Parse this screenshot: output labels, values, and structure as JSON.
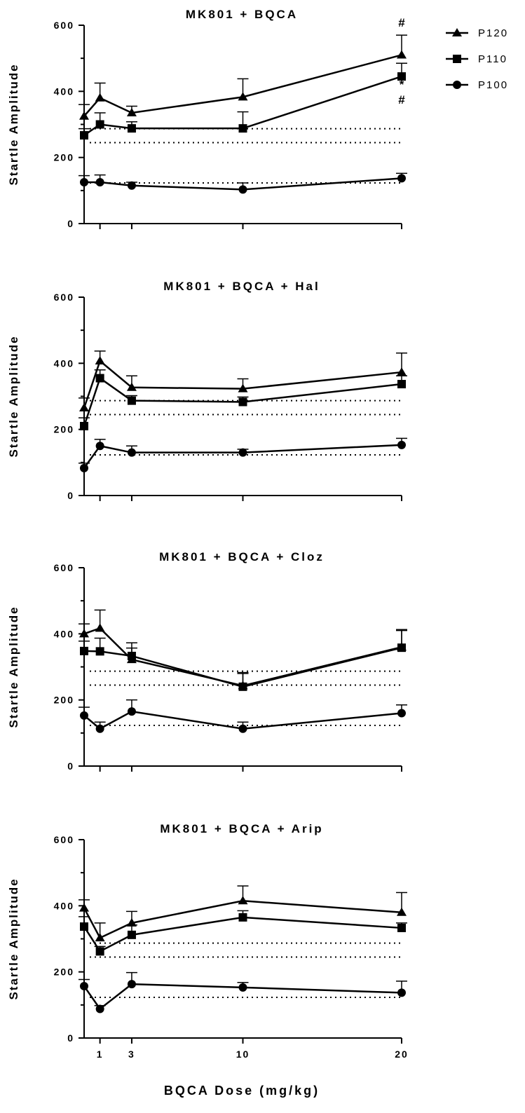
{
  "chart_data": {
    "type": "line",
    "xlabel": "BQCA Dose (mg/kg)",
    "ylabel": "Startle Amplitude",
    "x_ticks": [
      1,
      3,
      10,
      20
    ],
    "x_tick_labels": [
      "1",
      "3",
      "10",
      "20"
    ],
    "xlim": [
      0,
      20
    ],
    "ylim": [
      0,
      600
    ],
    "y_ticks": [
      0,
      200,
      400,
      600
    ],
    "y_tick_labels": [
      "0",
      "200",
      "400",
      "600"
    ],
    "legend": {
      "position": "top-right",
      "entries": [
        {
          "name": "P120",
          "marker": "triangle"
        },
        {
          "name": "P110",
          "marker": "square"
        },
        {
          "name": "P100",
          "marker": "circle"
        }
      ]
    },
    "reference_lines": [
      287,
      245,
      123
    ],
    "x": [
      0,
      1,
      3,
      10,
      20
    ],
    "panels": [
      {
        "title": "MK801 + BQCA",
        "series": [
          {
            "name": "P120",
            "values": [
              325,
              380,
              335,
              383,
              510
            ],
            "errors": [
              35,
              45,
              20,
              55,
              60
            ]
          },
          {
            "name": "P110",
            "values": [
              267,
              300,
              288,
              288,
              445
            ],
            "errors": [
              20,
              35,
              20,
              50,
              40
            ]
          },
          {
            "name": "P100",
            "values": [
              125,
              125,
              115,
              103,
              137
            ],
            "errors": [
              20,
              22,
              10,
              20,
              15
            ]
          }
        ],
        "annotations": [
          {
            "x": 20,
            "text": "#",
            "placement": "above P120"
          },
          {
            "x": 20,
            "text": "*",
            "placement": "above P110"
          },
          {
            "x": 20,
            "text": "#",
            "placement": "above P110"
          }
        ]
      },
      {
        "title": "MK801 + BQCA + Hal",
        "series": [
          {
            "name": "P120",
            "values": [
              265,
              407,
              327,
              323,
              373
            ],
            "errors": [
              30,
              30,
              35,
              30,
              58
            ]
          },
          {
            "name": "P110",
            "values": [
              210,
              355,
              287,
              283,
              337
            ],
            "errors": [
              25,
              25,
              15,
              15,
              25
            ]
          },
          {
            "name": "P100",
            "values": [
              83,
              150,
              130,
              130,
              153
            ],
            "errors": [
              15,
              20,
              20,
              10,
              20
            ]
          }
        ]
      },
      {
        "title": "MK801 + BQCA + Cloz",
        "series": [
          {
            "name": "P120",
            "values": [
              400,
              417,
              322,
              243,
              360
            ],
            "errors": [
              30,
              55,
              35,
              40,
              50
            ]
          },
          {
            "name": "P110",
            "values": [
              348,
              347,
              333,
              240,
              358
            ],
            "errors": [
              30,
              40,
              40,
              40,
              55
            ]
          },
          {
            "name": "P100",
            "values": [
              153,
              113,
              165,
              113,
              160
            ],
            "errors": [
              25,
              20,
              35,
              20,
              25
            ]
          }
        ]
      },
      {
        "title": "MK801 + BQCA + Arip",
        "series": [
          {
            "name": "P120",
            "values": [
              393,
              303,
              348,
              415,
              380
            ],
            "errors": [
              25,
              45,
              35,
              45,
              60
            ]
          },
          {
            "name": "P110",
            "values": [
              337,
              262,
              312,
              365,
              333
            ],
            "errors": [
              30,
              15,
              30,
              20,
              15
            ]
          },
          {
            "name": "P100",
            "values": [
              157,
              88,
              163,
              153,
              137
            ],
            "errors": [
              20,
              10,
              35,
              15,
              35
            ]
          }
        ]
      }
    ]
  }
}
